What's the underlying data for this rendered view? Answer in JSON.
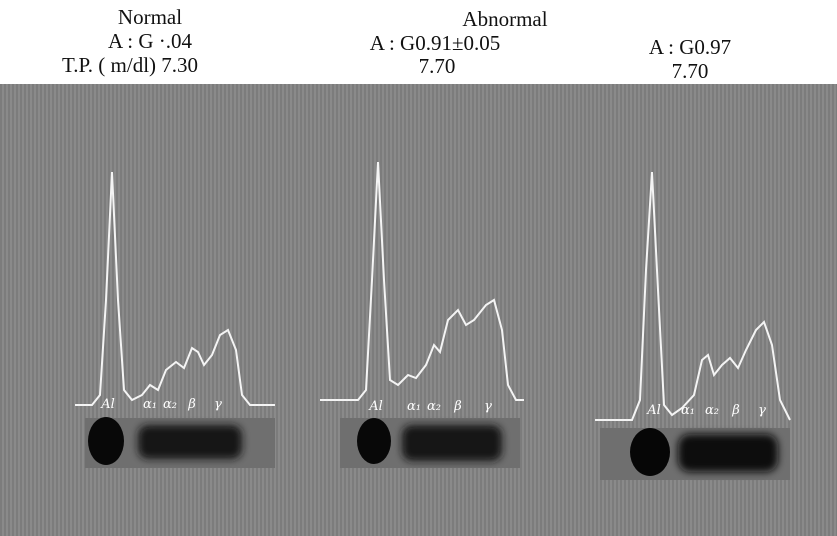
{
  "header": {
    "normal": {
      "title": "Normal",
      "ratio": "A : G ·.04",
      "tp": "T.P. ( m/dl) 7.30"
    },
    "abnormal": {
      "title": "Abnormal",
      "samples": [
        {
          "ratio": "A : G0.91±0.05",
          "tp": "7.70"
        },
        {
          "ratio": "A : G0.97",
          "tp": "7.70"
        }
      ]
    }
  },
  "panels": [
    {
      "lanes": [
        "Al",
        "α₁",
        "α₂",
        "β",
        "γ"
      ]
    },
    {
      "lanes": [
        "Al",
        "α₁",
        "α₂",
        "β",
        "γ"
      ]
    },
    {
      "lanes": [
        "Al",
        "α₁",
        "α₂",
        "β",
        "γ"
      ]
    }
  ]
}
